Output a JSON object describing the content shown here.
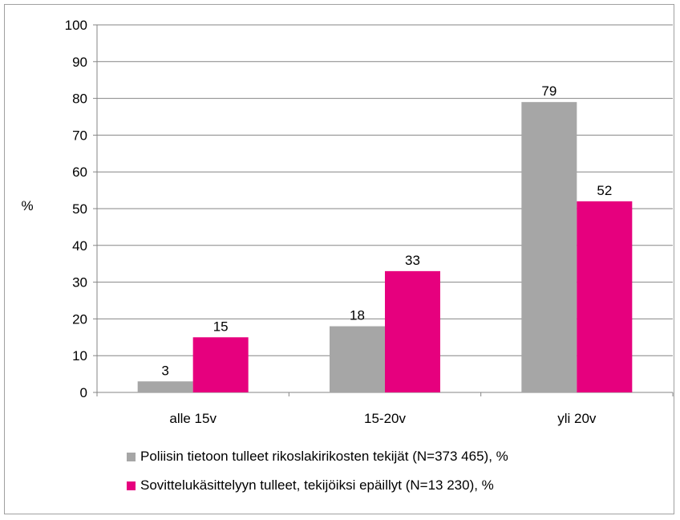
{
  "chart_data": {
    "type": "bar",
    "title": "",
    "xlabel": "",
    "ylabel": "%",
    "ylim": [
      0,
      100
    ],
    "yticks": [
      0,
      10,
      20,
      30,
      40,
      50,
      60,
      70,
      80,
      90,
      100
    ],
    "grid": true,
    "legend_position": "bottom",
    "categories": [
      "alle 15v",
      "15-20v",
      "yli 20v"
    ],
    "series": [
      {
        "name": "Poliisin tietoon tulleet rikoslakirikosten tekijät (N=373 465), %",
        "values": [
          3,
          18,
          79
        ],
        "color": "#a6a6a6"
      },
      {
        "name": "Sovittelukäsittelyyn tulleet, tekijöiksi epäillyt (N=13 230), %",
        "values": [
          15,
          33,
          52
        ],
        "color": "#e6007e"
      }
    ]
  }
}
